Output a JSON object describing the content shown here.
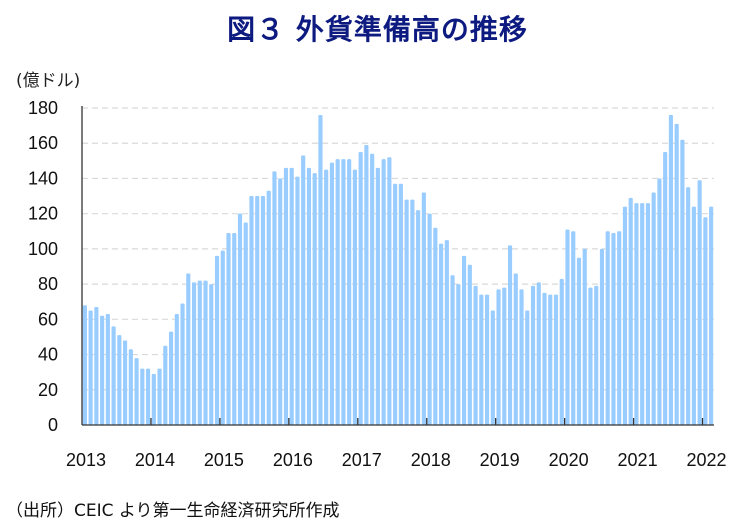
{
  "title": "図３ 外貨準備高の推移",
  "unit_label": "(億ドル)",
  "source_note": "（出所）CEIC より第一生命経済研究所作成",
  "colors": {
    "bar": "#99ccff",
    "title": "#0d1a80",
    "grid": "#d9d9d9",
    "axis": "#333333"
  },
  "chart_data": {
    "type": "bar",
    "title": "図３ 外貨準備高の推移",
    "xlabel": "",
    "ylabel": "(億ドル)",
    "ylim": [
      0,
      180
    ],
    "yticks": [
      0,
      20,
      40,
      60,
      80,
      100,
      120,
      140,
      160,
      180
    ],
    "grid": true,
    "legend": "none",
    "frequency": "monthly",
    "start": "2013-01",
    "end": "2022-02",
    "xtick_labels": [
      "2013",
      "2014",
      "2015",
      "2016",
      "2017",
      "2018",
      "2019",
      "2020",
      "2021",
      "2022"
    ],
    "series": [
      {
        "name": "外貨準備高",
        "values": [
          68,
          65,
          67,
          62,
          63,
          56,
          51,
          48,
          43,
          38,
          32,
          32,
          29,
          32,
          45,
          53,
          63,
          69,
          86,
          81,
          82,
          82,
          80,
          96,
          99,
          109,
          109,
          120,
          115,
          130,
          130,
          130,
          133,
          144,
          140,
          146,
          146,
          141,
          153,
          146,
          143,
          176,
          145,
          149,
          151,
          151,
          151,
          145,
          155,
          159,
          154,
          146,
          151,
          152,
          137,
          137,
          128,
          128,
          122,
          132,
          120,
          112,
          103,
          105,
          85,
          80,
          96,
          91,
          79,
          74,
          74,
          65,
          77,
          78,
          102,
          86,
          77,
          65,
          79,
          81,
          75,
          74,
          74,
          83,
          111,
          110,
          95,
          100,
          78,
          79,
          100,
          110,
          109,
          110,
          124,
          129,
          126,
          126,
          126,
          132,
          140,
          155,
          176,
          171,
          162,
          135,
          124,
          139,
          118,
          124
        ]
      }
    ]
  }
}
